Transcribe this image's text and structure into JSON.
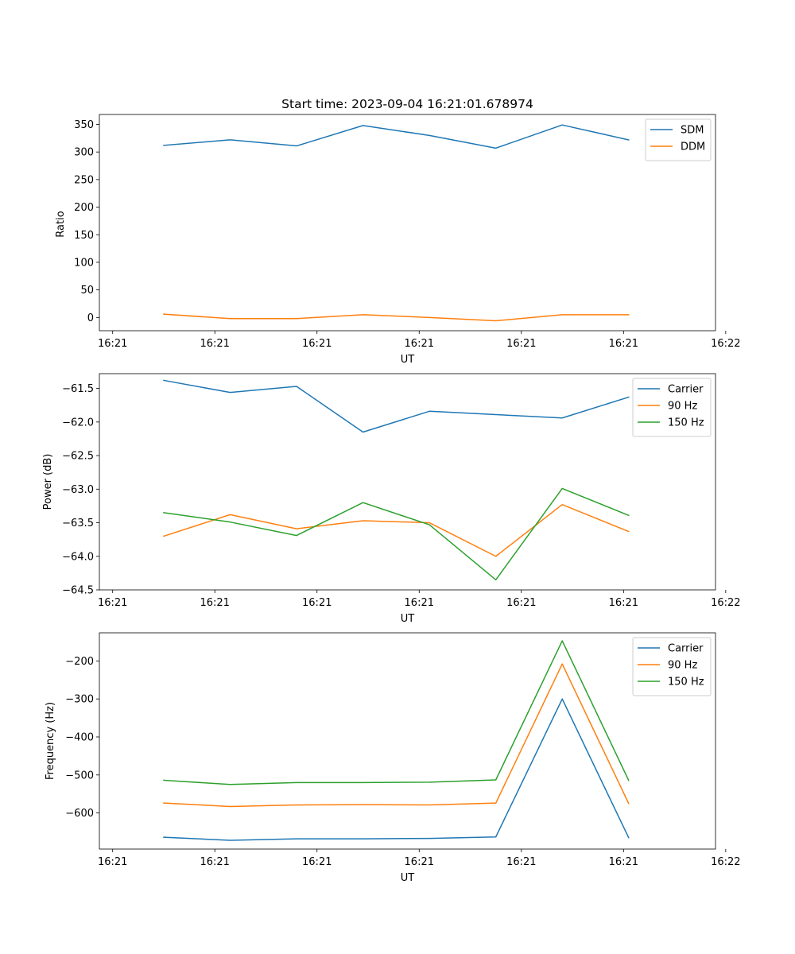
{
  "colors": {
    "blue": "#1f77b4",
    "orange": "#ff7f0e",
    "green": "#2ca02c"
  },
  "chart_data": [
    {
      "type": "line",
      "title": "Start time: 2023-09-04 16:21:01.678974",
      "xlabel": "UT",
      "ylabel": "Ratio",
      "xlim": [
        -0.13,
        5.9
      ],
      "ylim": [
        -24,
        368
      ],
      "x": [
        0.5,
        1.15,
        1.8,
        2.45,
        3.1,
        3.75,
        4.4,
        5.05
      ],
      "x_ticks": [
        0,
        1,
        2,
        3,
        4,
        5,
        6
      ],
      "x_tick_labels": [
        "16:21",
        "16:21",
        "16:21",
        "16:21",
        "16:21",
        "16:21",
        "16:22"
      ],
      "y_ticks": [
        0,
        50,
        100,
        150,
        200,
        250,
        300,
        350
      ],
      "y_tick_labels": [
        "0",
        "50",
        "100",
        "150",
        "200",
        "250",
        "300",
        "350"
      ],
      "legend": "top-right",
      "series": [
        {
          "name": "SDM",
          "color": "#1f77b4",
          "values": [
            312,
            322,
            311,
            348,
            330,
            307,
            349,
            322
          ]
        },
        {
          "name": "DDM",
          "color": "#ff7f0e",
          "values": [
            6,
            -2,
            -2,
            5,
            0,
            -6,
            5,
            5
          ]
        }
      ]
    },
    {
      "type": "line",
      "title": "",
      "xlabel": "UT",
      "ylabel": "Power (dB)",
      "xlim": [
        -0.13,
        5.9
      ],
      "ylim": [
        -64.5,
        -61.28
      ],
      "x": [
        0.5,
        1.15,
        1.8,
        2.45,
        3.1,
        3.75,
        4.4,
        5.05
      ],
      "x_ticks": [
        0,
        1,
        2,
        3,
        4,
        5,
        6
      ],
      "x_tick_labels": [
        "16:21",
        "16:21",
        "16:21",
        "16:21",
        "16:21",
        "16:21",
        "16:22"
      ],
      "y_ticks": [
        -64.5,
        -64.0,
        -63.5,
        -63.0,
        -62.5,
        -62.0,
        -61.5
      ],
      "y_tick_labels": [
        "−64.5",
        "−64.0",
        "−63.5",
        "−63.0",
        "−62.5",
        "−62.0",
        "−61.5"
      ],
      "legend": "top-right",
      "series": [
        {
          "name": "Carrier",
          "color": "#1f77b4",
          "values": [
            -61.38,
            -61.56,
            -61.47,
            -62.15,
            -61.84,
            -61.89,
            -61.94,
            -61.63
          ]
        },
        {
          "name": "90 Hz",
          "color": "#ff7f0e",
          "values": [
            -63.7,
            -63.38,
            -63.59,
            -63.47,
            -63.5,
            -64.0,
            -63.23,
            -63.63
          ]
        },
        {
          "name": "150 Hz",
          "color": "#2ca02c",
          "values": [
            -63.35,
            -63.49,
            -63.69,
            -63.2,
            -63.53,
            -64.35,
            -62.99,
            -63.39
          ]
        }
      ]
    },
    {
      "type": "line",
      "title": "",
      "xlabel": "UT",
      "ylabel": "Frequency (Hz)",
      "xlim": [
        -0.13,
        5.9
      ],
      "ylim": [
        -695,
        -126
      ],
      "x": [
        0.5,
        1.15,
        1.8,
        2.45,
        3.1,
        3.75,
        4.4,
        5.05
      ],
      "x_ticks": [
        0,
        1,
        2,
        3,
        4,
        5,
        6
      ],
      "x_tick_labels": [
        "16:21",
        "16:21",
        "16:21",
        "16:21",
        "16:21",
        "16:21",
        "16:22"
      ],
      "y_ticks": [
        -600,
        -500,
        -400,
        -300,
        -200
      ],
      "y_tick_labels": [
        "−600",
        "−500",
        "−400",
        "−300",
        "−200"
      ],
      "legend": "top-right",
      "series": [
        {
          "name": "Carrier",
          "color": "#1f77b4",
          "values": [
            -664,
            -672,
            -668,
            -668,
            -667,
            -663,
            -300,
            -665
          ]
        },
        {
          "name": "90 Hz",
          "color": "#ff7f0e",
          "values": [
            -574,
            -583,
            -579,
            -578,
            -579,
            -574,
            -208,
            -575
          ]
        },
        {
          "name": "150 Hz",
          "color": "#2ca02c",
          "values": [
            -514,
            -525,
            -520,
            -520,
            -519,
            -513,
            -147,
            -514
          ]
        }
      ]
    }
  ]
}
